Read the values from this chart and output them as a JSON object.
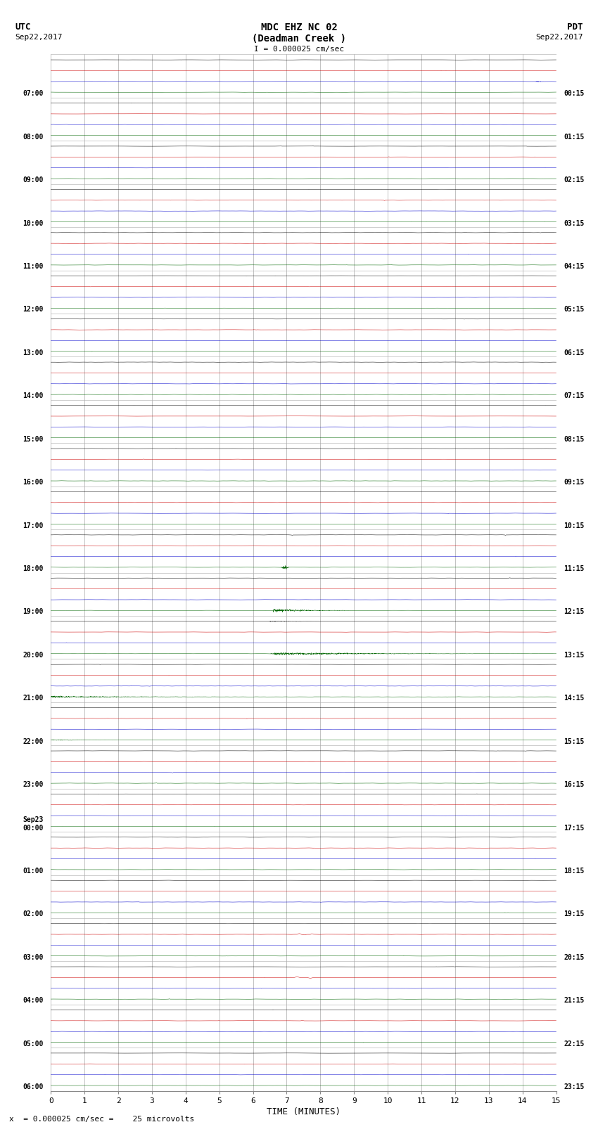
{
  "title_line1": "MDC EHZ NC 02",
  "title_line2": "(Deadman Creek )",
  "scale_label": "I = 0.000025 cm/sec",
  "utc_label": "UTC",
  "utc_date": "Sep22,2017",
  "pdt_label": "PDT",
  "pdt_date": "Sep22,2017",
  "xlabel": "TIME (MINUTES)",
  "bottom_note": "x  = 0.000025 cm/sec =    25 microvolts",
  "bg_color": "#ffffff",
  "trace_colors": [
    "#000000",
    "#cc0000",
    "#0000cc",
    "#006600"
  ],
  "left_times_utc": [
    "07:00",
    "08:00",
    "09:00",
    "10:00",
    "11:00",
    "12:00",
    "13:00",
    "14:00",
    "15:00",
    "16:00",
    "17:00",
    "18:00",
    "19:00",
    "20:00",
    "21:00",
    "22:00",
    "23:00",
    "Sep23\n00:00",
    "01:00",
    "02:00",
    "03:00",
    "04:00",
    "05:00",
    "06:00"
  ],
  "right_times_pdt": [
    "00:15",
    "01:15",
    "02:15",
    "03:15",
    "04:15",
    "05:15",
    "06:15",
    "07:15",
    "08:15",
    "09:15",
    "10:15",
    "11:15",
    "12:15",
    "13:15",
    "14:15",
    "15:15",
    "16:15",
    "17:15",
    "18:15",
    "19:15",
    "20:15",
    "21:15",
    "22:15",
    "23:15"
  ],
  "n_rows": 24,
  "n_traces_per_row": 4,
  "xmin": 0,
  "xmax": 15,
  "xticks": [
    0,
    1,
    2,
    3,
    4,
    5,
    6,
    7,
    8,
    9,
    10,
    11,
    12,
    13,
    14,
    15
  ],
  "grid_color": "#aaaaaa",
  "sample_rate": 200
}
